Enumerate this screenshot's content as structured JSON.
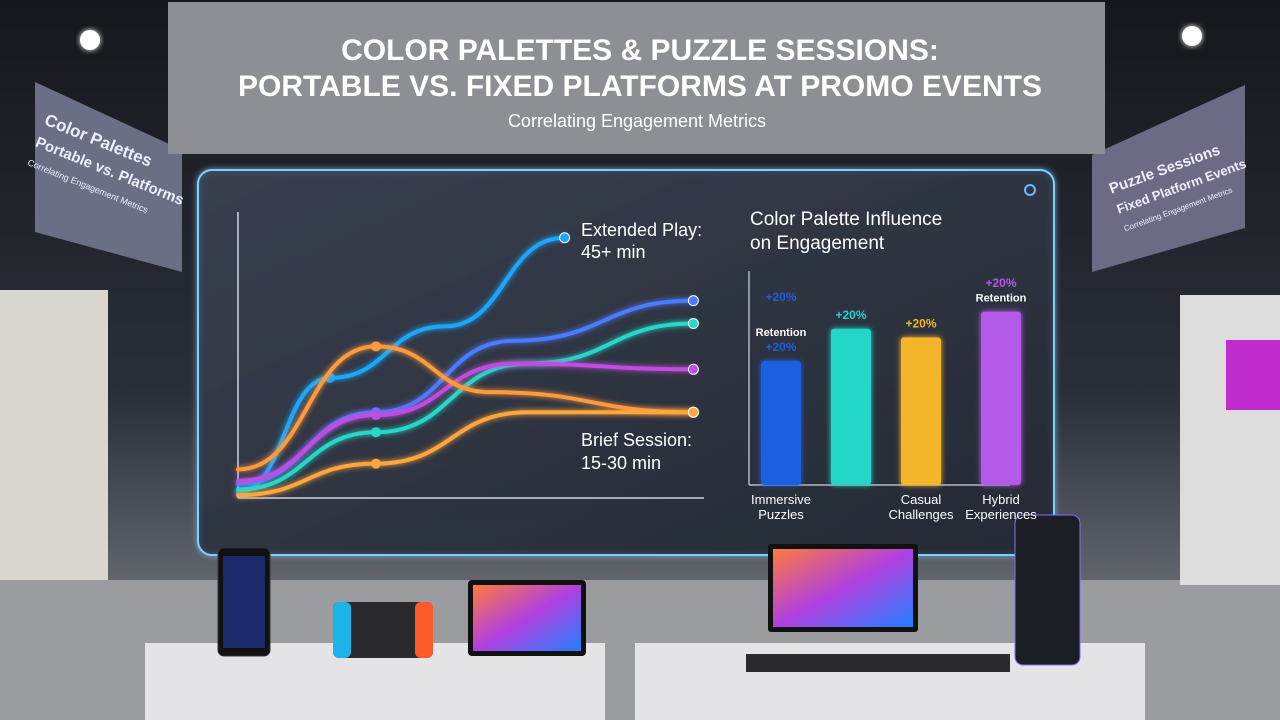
{
  "header": {
    "title_lines": [
      "COLOR PALETTES & PUZZLE SESSIONS:",
      "PORTABLE VS. FIXED PLATFORMS AT PROMO EVENTS"
    ],
    "subtitle": "Correlating Engagement Metrics"
  },
  "banners": {
    "left": [
      "Color Palettes",
      "Portable vs. Platforms",
      "Correlating Engagement Metrics"
    ],
    "right": [
      "Puzzle Sessions",
      "Fixed Platform Events",
      "Correlating Engagement Metrics"
    ]
  },
  "chart_data": [
    {
      "type": "line",
      "annotations": [
        "Extended Play:",
        "45+ min",
        "Brief Session:",
        "15-30 min"
      ],
      "xlim": [
        0,
        100
      ],
      "ylim": [
        0,
        100
      ],
      "series": [
        {
          "color": "#1ea7ff",
          "x": [
            0,
            20,
            45,
            71
          ],
          "values": [
            2,
            42,
            60,
            91
          ]
        },
        {
          "color": "#4a7cff",
          "x": [
            0,
            30,
            60,
            99
          ],
          "values": [
            5,
            30,
            55,
            69
          ]
        },
        {
          "color": "#26d8c8",
          "x": [
            0,
            30,
            63,
            99
          ],
          "values": [
            3,
            23,
            47,
            61
          ]
        },
        {
          "color": "#c04ee0",
          "x": [
            0,
            30,
            60,
            99
          ],
          "values": [
            6,
            29,
            47,
            45
          ]
        },
        {
          "color": "#ff9a3c",
          "x": [
            0,
            30,
            55,
            99
          ],
          "values": [
            10,
            53,
            37,
            30
          ]
        },
        {
          "color": "#ffa63c",
          "x": [
            0,
            30,
            63,
            99
          ],
          "values": [
            1,
            12,
            30,
            30
          ]
        }
      ]
    },
    {
      "type": "bar",
      "title": "Color Palette Influence on Engagement",
      "categories": [
        "Immersive Puzzles",
        null,
        "Casual Challenges",
        "Hybrid Experiences"
      ],
      "values": [
        58,
        73,
        69,
        81
      ],
      "colors": [
        "#1f5fe0",
        "#20d6c8",
        "#f5b52a",
        "#b45ae8"
      ],
      "bar_labels": [
        [
          "+20%",
          "Retention",
          "+20%"
        ],
        [
          "+20%"
        ],
        [
          "+20%"
        ],
        [
          "+20%",
          "Retention"
        ]
      ],
      "ylim": [
        0,
        100
      ]
    }
  ]
}
